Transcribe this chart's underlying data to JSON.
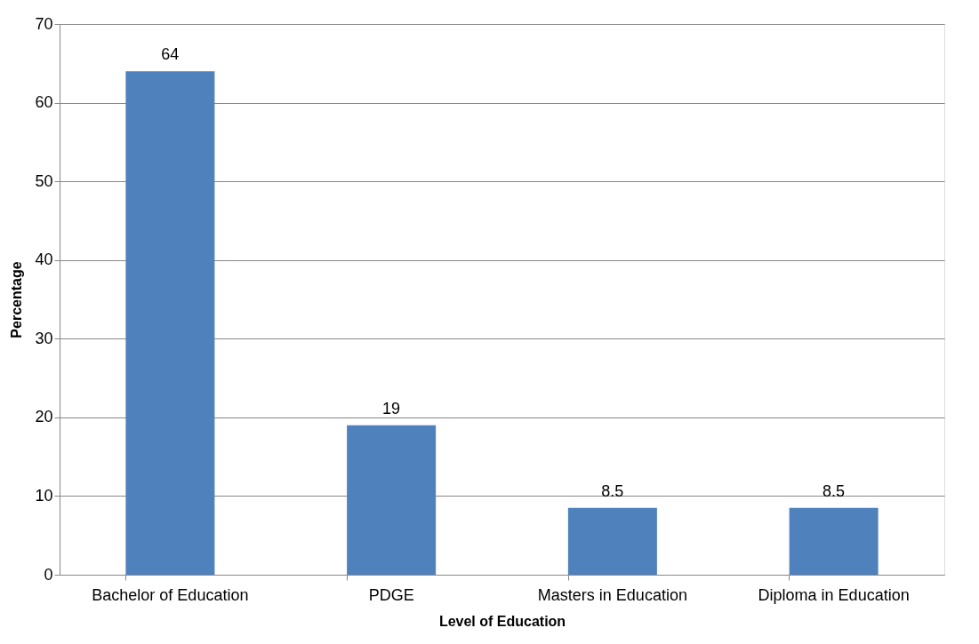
{
  "chart_data": {
    "type": "bar",
    "xlabel": "Level of Education",
    "ylabel": "Percentage",
    "categories": [
      "Bachelor of Education",
      "PDGE",
      "Masters in Education",
      "Diploma in Education"
    ],
    "values": [
      64,
      19,
      8.5,
      8.5
    ],
    "color": "#4f81bd",
    "ylim": [
      0,
      70
    ],
    "yticks": [
      0,
      10,
      20,
      30,
      40,
      50,
      60,
      70
    ],
    "grid": "y",
    "data_labels": true
  }
}
